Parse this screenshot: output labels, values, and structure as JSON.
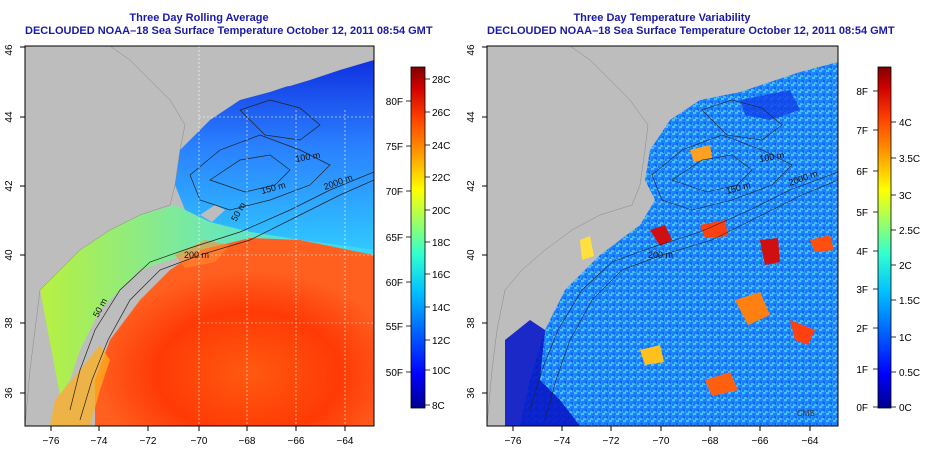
{
  "colors": {
    "land": "#bdbdbd",
    "title": "#1a1aa8",
    "colormap": [
      "#00008f",
      "#0000ff",
      "#0060ff",
      "#00c0ff",
      "#30ffd0",
      "#a0ff60",
      "#ffff00",
      "#ffa000",
      "#ff4000",
      "#d00000",
      "#800000"
    ]
  },
  "left": {
    "title_line1": "Three Day Rolling Average",
    "title_line2": "DECLOUDED NOAA–18 Sea Surface Temperature October 12, 2011 08:54 GMT",
    "x_ticks": [
      "−76",
      "−74",
      "−72",
      "−70",
      "−68",
      "−66",
      "−64"
    ],
    "y_ticks": [
      "36",
      "38",
      "40",
      "42",
      "44",
      "46"
    ],
    "contours": [
      "100 m",
      "150 m",
      "2000 m",
      "50 m",
      "200 m",
      "50 m"
    ],
    "colorbar": {
      "c_labels": [
        "8C",
        "10C",
        "12C",
        "14C",
        "16C",
        "18C",
        "20C",
        "22C",
        "24C",
        "26C",
        "28C"
      ],
      "f_labels": [
        "50F",
        "55F",
        "60F",
        "65F",
        "70F",
        "75F",
        "80F"
      ]
    }
  },
  "right": {
    "title_line1": "Three Day Temperature Variability",
    "title_line2": "DECLOUDED NOAA–18 Sea Surface Temperature October 12, 2011 08:54 GMT",
    "x_ticks": [
      "−76",
      "−74",
      "−72",
      "−70",
      "−68",
      "−66",
      "−64"
    ],
    "y_ticks": [
      "36",
      "38",
      "40",
      "42",
      "44",
      "46"
    ],
    "contours": [
      "100 m",
      "150 m",
      "2000 m",
      "200 m"
    ],
    "watermark": "CMS",
    "colorbar": {
      "f_labels": [
        "0F",
        "1F",
        "2F",
        "3F",
        "4F",
        "5F",
        "6F",
        "7F",
        "8F"
      ],
      "c_labels": [
        "0C",
        "0.5C",
        "1C",
        "1.5C",
        "2C",
        "2.5C",
        "3C",
        "3.5C",
        "4C"
      ]
    }
  }
}
